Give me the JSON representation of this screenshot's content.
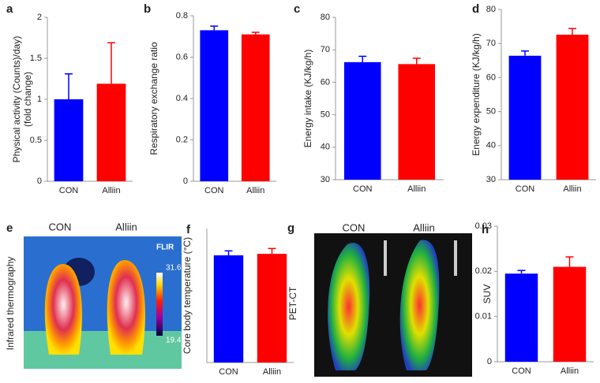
{
  "chart_data": [
    {
      "type": "bar",
      "label": "a",
      "ylabel": [
        "Physical activity (Counts)/day)",
        "(fold change)"
      ],
      "categories": [
        "CON",
        "Alliin"
      ],
      "values": [
        1.0,
        1.19
      ],
      "errors": [
        0.31,
        0.5
      ],
      "colors": [
        "#0000ff",
        "#ff0000"
      ],
      "ylim": [
        0,
        2
      ],
      "yticks": [
        0,
        0.5,
        1,
        1.5,
        2
      ]
    },
    {
      "type": "bar",
      "label": "b",
      "ylabel": [
        "Respiratory exchange ratio"
      ],
      "categories": [
        "CON",
        "Alliin"
      ],
      "values": [
        0.73,
        0.71
      ],
      "errors": [
        0.02,
        0.01
      ],
      "colors": [
        "#0000ff",
        "#ff0000"
      ],
      "ylim": [
        0,
        0.8
      ],
      "yticks": [
        0,
        0.2,
        0.4,
        0.6,
        0.8
      ]
    },
    {
      "type": "bar",
      "label": "c",
      "ylabel": [
        "Energy intake  (KJ/kg/h)"
      ],
      "categories": [
        "CON",
        "Alliin"
      ],
      "values": [
        66.2,
        65.6
      ],
      "errors": [
        1.8,
        1.8
      ],
      "colors": [
        "#0000ff",
        "#ff0000"
      ],
      "ylim": [
        30,
        80
      ],
      "yticks": [
        30,
        40,
        50,
        60,
        70,
        80
      ]
    },
    {
      "type": "bar",
      "label": "d",
      "ylabel": [
        "Energy expenditure (KJ/kg/h)"
      ],
      "categories": [
        "CON",
        "Alliin"
      ],
      "values": [
        66.4,
        72.6
      ],
      "errors": [
        1.4,
        1.8
      ],
      "colors": [
        "#0000ff",
        "#ff0000"
      ],
      "ylim": [
        30,
        80
      ],
      "yticks": [
        30,
        40,
        50,
        60,
        70,
        80
      ]
    },
    {
      "type": "bar",
      "label": "f",
      "ylabel": [
        "Core body temperature (°C)"
      ],
      "categories": [
        "CON",
        "Alliin"
      ],
      "values": [
        36,
        36.5
      ],
      "errors": [
        1.5,
        1.8
      ],
      "colors": [
        "#0000ff",
        "#ff0000"
      ],
      "ylim": [
        0,
        45
      ],
      "yticks": []
    },
    {
      "type": "bar",
      "label": "h",
      "ylabel": [
        "SUV"
      ],
      "categories": [
        "CON",
        "Alliin"
      ],
      "values": [
        0.0195,
        0.021
      ],
      "errors": [
        0.0007,
        0.0022
      ],
      "colors": [
        "#0000ff",
        "#ff0000"
      ],
      "ylim": [
        0,
        0.03
      ],
      "yticks": [
        0,
        0.01,
        0.02,
        0.03
      ]
    }
  ],
  "images": [
    {
      "label": "e",
      "categories": [
        "CON",
        "Alliin"
      ],
      "side": "Infrared  thermography",
      "logo": "FLIR",
      "scale": [
        31.6,
        19.4
      ]
    },
    {
      "label": "g",
      "categories": [
        "CON",
        "Alliin"
      ],
      "side": "PET-CT"
    }
  ]
}
